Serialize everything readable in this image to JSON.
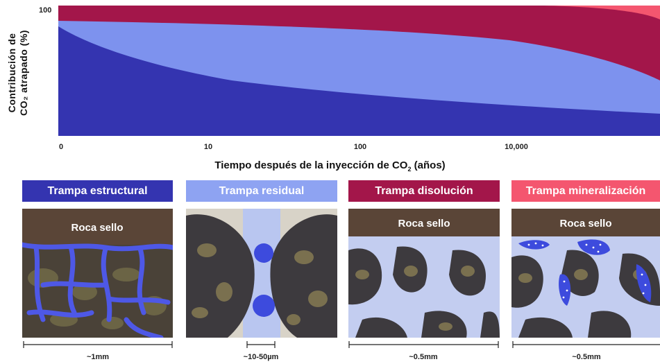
{
  "chart_data": {
    "type": "area",
    "ylabel_line1": "Contribución de",
    "ylabel_line2": "CO₂ atrapado (%)",
    "y_tick": "100",
    "x_ticks": [
      "0",
      "10",
      "100",
      "10,000"
    ],
    "xlabel_pre": "Tiempo después de la inyección de CO",
    "xlabel_sub": "2",
    "xlabel_post": " (años)",
    "stacked": true,
    "series": [
      {
        "name": "Trampa estructural",
        "color": "#3434b0"
      },
      {
        "name": "Trampa residual",
        "color": "#7d92ee"
      },
      {
        "name": "Trampa disolución",
        "color": "#a3164a"
      },
      {
        "name": "Trampa mineralización",
        "color": "#f4566f"
      }
    ]
  },
  "panels": [
    {
      "title": "Trampa estructural",
      "color": "#3434b0",
      "rock_label": "Roca sello",
      "scale": "~1mm"
    },
    {
      "title": "Trampa residual",
      "color": "#8ea3f2",
      "rock_label": "",
      "scale": "~10-50µm"
    },
    {
      "title": "Trampa disolución",
      "color": "#a3164a",
      "rock_label": "Roca sello",
      "scale": "~0.5mm"
    },
    {
      "title": "Trampa mineralización",
      "color": "#f4566f",
      "rock_label": "Roca sello",
      "scale": "~0.5mm"
    }
  ]
}
